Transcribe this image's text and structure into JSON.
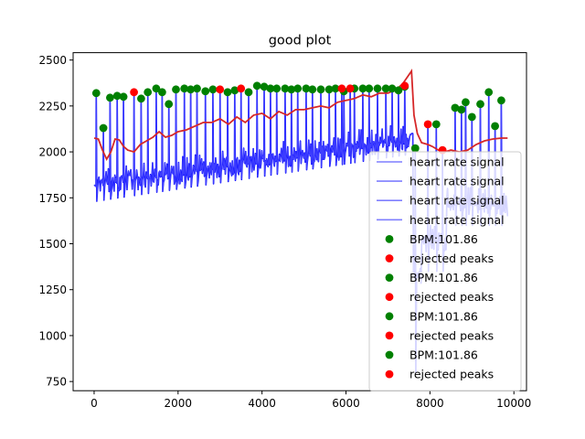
{
  "chart_data": {
    "type": "line",
    "title": "good plot",
    "xlabel": "",
    "ylabel": "",
    "xlim": [
      -500,
      10300
    ],
    "ylim": [
      700,
      2540
    ],
    "xticks": [
      0,
      2000,
      4000,
      6000,
      8000,
      10000
    ],
    "yticks": [
      750,
      1000,
      1250,
      1500,
      1750,
      2000,
      2250,
      2500
    ],
    "grid": false,
    "legend_placement": "lower-right",
    "colors": {
      "signal": "#0000ff",
      "signal_legend": "#7f7fff",
      "moving_average": "#d62728",
      "accepted_peaks": "#008000",
      "rejected_peaks": "#ff0000"
    },
    "moving_average": [
      [
        0,
        2075
      ],
      [
        100,
        2070
      ],
      [
        200,
        2010
      ],
      [
        300,
        1960
      ],
      [
        400,
        2000
      ],
      [
        500,
        2070
      ],
      [
        600,
        2065
      ],
      [
        700,
        2030
      ],
      [
        800,
        2010
      ],
      [
        950,
        2000
      ],
      [
        1100,
        2040
      ],
      [
        1250,
        2060
      ],
      [
        1400,
        2080
      ],
      [
        1550,
        2110
      ],
      [
        1700,
        2080
      ],
      [
        1850,
        2090
      ],
      [
        2000,
        2110
      ],
      [
        2200,
        2120
      ],
      [
        2400,
        2140
      ],
      [
        2600,
        2160
      ],
      [
        2800,
        2160
      ],
      [
        3000,
        2180
      ],
      [
        3200,
        2150
      ],
      [
        3400,
        2190
      ],
      [
        3600,
        2160
      ],
      [
        3800,
        2200
      ],
      [
        4000,
        2210
      ],
      [
        4200,
        2180
      ],
      [
        4400,
        2220
      ],
      [
        4600,
        2200
      ],
      [
        4800,
        2230
      ],
      [
        5000,
        2230
      ],
      [
        5200,
        2240
      ],
      [
        5400,
        2250
      ],
      [
        5600,
        2240
      ],
      [
        5800,
        2270
      ],
      [
        6000,
        2280
      ],
      [
        6200,
        2290
      ],
      [
        6400,
        2310
      ],
      [
        6600,
        2300
      ],
      [
        6800,
        2320
      ],
      [
        7000,
        2320
      ],
      [
        7200,
        2340
      ],
      [
        7350,
        2370
      ],
      [
        7500,
        2420
      ],
      [
        7560,
        2440
      ],
      [
        7620,
        2200
      ],
      [
        7700,
        2100
      ],
      [
        7800,
        2050
      ],
      [
        7950,
        2040
      ],
      [
        8050,
        2030
      ],
      [
        8200,
        2010
      ],
      [
        8350,
        2000
      ],
      [
        8500,
        2010
      ],
      [
        8700,
        2000
      ],
      [
        8900,
        2010
      ],
      [
        9100,
        2040
      ],
      [
        9300,
        2060
      ],
      [
        9500,
        2070
      ],
      [
        9700,
        2075
      ],
      [
        9850,
        2075
      ]
    ],
    "accepted_peaks": [
      [
        50,
        2320
      ],
      [
        220,
        2130
      ],
      [
        380,
        2295
      ],
      [
        550,
        2305
      ],
      [
        700,
        2300
      ],
      [
        1120,
        2290
      ],
      [
        1280,
        2325
      ],
      [
        1480,
        2345
      ],
      [
        1620,
        2325
      ],
      [
        1780,
        2260
      ],
      [
        1950,
        2340
      ],
      [
        2150,
        2345
      ],
      [
        2300,
        2340
      ],
      [
        2450,
        2345
      ],
      [
        2650,
        2330
      ],
      [
        2830,
        2340
      ],
      [
        3180,
        2325
      ],
      [
        3350,
        2335
      ],
      [
        3680,
        2325
      ],
      [
        3880,
        2360
      ],
      [
        4050,
        2355
      ],
      [
        4200,
        2345
      ],
      [
        4350,
        2345
      ],
      [
        4550,
        2345
      ],
      [
        4700,
        2340
      ],
      [
        4850,
        2345
      ],
      [
        5050,
        2345
      ],
      [
        5200,
        2340
      ],
      [
        5400,
        2340
      ],
      [
        5600,
        2340
      ],
      [
        5750,
        2345
      ],
      [
        5950,
        2330
      ],
      [
        6200,
        2345
      ],
      [
        6400,
        2345
      ],
      [
        6550,
        2345
      ],
      [
        6750,
        2345
      ],
      [
        6950,
        2345
      ],
      [
        7100,
        2345
      ],
      [
        7250,
        2335
      ],
      [
        7400,
        2355
      ],
      [
        7650,
        2020
      ],
      [
        8150,
        2150
      ],
      [
        8600,
        2240
      ],
      [
        8750,
        2230
      ],
      [
        8850,
        2270
      ],
      [
        9000,
        2190
      ],
      [
        9200,
        2260
      ],
      [
        9400,
        2325
      ],
      [
        9550,
        2140
      ],
      [
        9700,
        2280
      ]
    ],
    "rejected_peaks": [
      [
        950,
        2325
      ],
      [
        3000,
        2340
      ],
      [
        3500,
        2345
      ],
      [
        5900,
        2345
      ],
      [
        6100,
        2345
      ],
      [
        7400,
        2360
      ],
      [
        7950,
        2150
      ],
      [
        8300,
        2010
      ]
    ],
    "legend": [
      {
        "label": "heart rate signal",
        "kind": "line"
      },
      {
        "label": "heart rate signal",
        "kind": "line"
      },
      {
        "label": "heart rate signal",
        "kind": "line"
      },
      {
        "label": "heart rate signal",
        "kind": "line"
      },
      {
        "label": "BPM:101.86",
        "kind": "accepted"
      },
      {
        "label": "rejected peaks",
        "kind": "rejected"
      },
      {
        "label": "BPM:101.86",
        "kind": "accepted"
      },
      {
        "label": "rejected peaks",
        "kind": "rejected"
      },
      {
        "label": "BPM:101.86",
        "kind": "accepted"
      },
      {
        "label": "rejected peaks",
        "kind": "rejected"
      },
      {
        "label": "BPM:101.86",
        "kind": "accepted"
      },
      {
        "label": "rejected peaks",
        "kind": "rejected"
      }
    ]
  }
}
